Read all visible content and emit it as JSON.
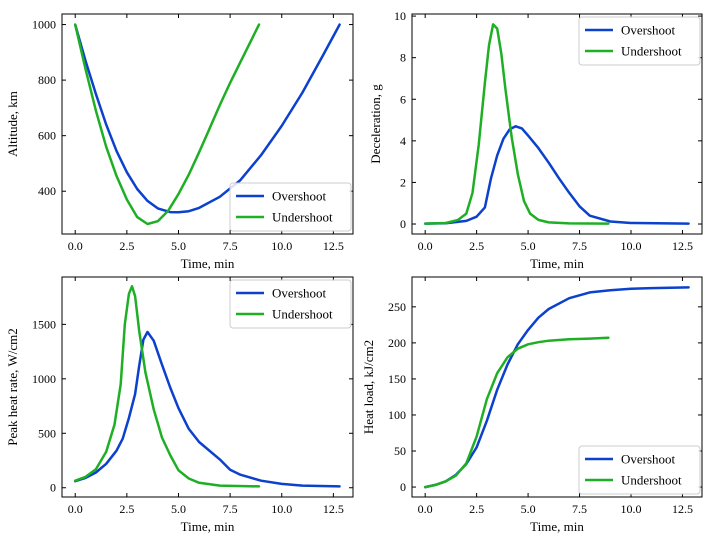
{
  "chart_data": [
    {
      "type": "line",
      "xlabel": "Time, min",
      "ylabel": "Altitude, km",
      "xlim": [
        -0.64,
        13.45
      ],
      "ylim": [
        246,
        1038
      ],
      "xticks": [
        0.0,
        2.5,
        5.0,
        7.5,
        10.0,
        12.5
      ],
      "xtick_labels": [
        "0.0",
        "2.5",
        "5.0",
        "7.5",
        "10.0",
        "12.5"
      ],
      "yticks": [
        400,
        600,
        800,
        1000
      ],
      "ytick_labels": [
        "400",
        "600",
        "800",
        "1000"
      ],
      "legend": "lower-right",
      "series": [
        {
          "name": "Overshoot",
          "color": "#0b41cd",
          "x": [
            0.0,
            0.5,
            1.0,
            1.5,
            2.0,
            2.5,
            3.0,
            3.5,
            4.0,
            4.6,
            5.0,
            5.5,
            6.0,
            7.0,
            8.0,
            9.0,
            10.0,
            11.0,
            12.0,
            12.8
          ],
          "y": [
            1000,
            870,
            750,
            640,
            545,
            468,
            408,
            365,
            338,
            325,
            324,
            328,
            340,
            380,
            440,
            530,
            635,
            755,
            890,
            1000
          ]
        },
        {
          "name": "Undershoot",
          "color": "#1faf24",
          "x": [
            0.0,
            0.5,
            1.0,
            1.5,
            2.0,
            2.5,
            3.0,
            3.5,
            4.0,
            4.5,
            5.0,
            5.5,
            6.0,
            6.5,
            7.0,
            7.5,
            8.0,
            8.5,
            8.9
          ],
          "y": [
            1000,
            840,
            690,
            560,
            455,
            370,
            307,
            282,
            292,
            330,
            390,
            460,
            540,
            625,
            710,
            790,
            865,
            940,
            1000
          ]
        }
      ]
    },
    {
      "type": "line",
      "xlabel": "Time, min",
      "ylabel": "Deceleration, g",
      "xlim": [
        -0.64,
        13.45
      ],
      "ylim": [
        -0.48,
        10.1
      ],
      "xticks": [
        0.0,
        2.5,
        5.0,
        7.5,
        10.0,
        12.5
      ],
      "xtick_labels": [
        "0.0",
        "2.5",
        "5.0",
        "7.5",
        "10.0",
        "12.5"
      ],
      "yticks": [
        0,
        2,
        4,
        6,
        8,
        10
      ],
      "ytick_labels": [
        "0",
        "2",
        "4",
        "6",
        "8",
        "10"
      ],
      "legend": "top-right",
      "series": [
        {
          "name": "Overshoot",
          "color": "#0b41cd",
          "x": [
            0.0,
            1.0,
            2.0,
            2.5,
            2.9,
            3.2,
            3.5,
            3.8,
            4.1,
            4.4,
            4.7,
            5.0,
            5.5,
            6.0,
            6.5,
            7.0,
            7.5,
            8.0,
            9.0,
            10.0,
            12.8
          ],
          "y": [
            0.02,
            0.04,
            0.15,
            0.35,
            0.8,
            2.2,
            3.3,
            4.1,
            4.55,
            4.7,
            4.6,
            4.25,
            3.65,
            2.95,
            2.2,
            1.5,
            0.85,
            0.4,
            0.12,
            0.05,
            0.02
          ]
        },
        {
          "name": "Undershoot",
          "color": "#1faf24",
          "x": [
            0.0,
            1.0,
            1.6,
            2.0,
            2.3,
            2.6,
            2.9,
            3.1,
            3.3,
            3.5,
            3.7,
            3.9,
            4.2,
            4.5,
            4.8,
            5.1,
            5.5,
            6.0,
            7.0,
            8.9
          ],
          "y": [
            0.02,
            0.05,
            0.2,
            0.5,
            1.5,
            3.8,
            6.8,
            8.6,
            9.6,
            9.4,
            8.2,
            6.5,
            4.2,
            2.4,
            1.1,
            0.5,
            0.2,
            0.08,
            0.03,
            0.02
          ]
        }
      ]
    },
    {
      "type": "line",
      "xlabel": "Time, min",
      "ylabel": "Peak heat rate, W/cm2",
      "xlim": [
        -0.64,
        13.45
      ],
      "ylim": [
        -85,
        1935
      ],
      "xticks": [
        0.0,
        2.5,
        5.0,
        7.5,
        10.0,
        12.5
      ],
      "xtick_labels": [
        "0.0",
        "2.5",
        "5.0",
        "7.5",
        "10.0",
        "12.5"
      ],
      "yticks": [
        0,
        500,
        1000,
        1500
      ],
      "ytick_labels": [
        "0",
        "500",
        "1000",
        "1500"
      ],
      "legend": "top-right",
      "series": [
        {
          "name": "Overshoot",
          "color": "#0b41cd",
          "x": [
            0.0,
            0.5,
            1.0,
            1.5,
            2.0,
            2.3,
            2.6,
            2.9,
            3.1,
            3.3,
            3.5,
            3.8,
            4.2,
            4.6,
            5.0,
            5.5,
            6.0,
            7.0,
            7.5,
            8.0,
            9.0,
            10.0,
            11.0,
            12.8
          ],
          "y": [
            60,
            90,
            140,
            220,
            340,
            450,
            640,
            860,
            1120,
            1360,
            1430,
            1350,
            1130,
            920,
            730,
            540,
            420,
            260,
            165,
            120,
            65,
            35,
            20,
            12
          ]
        },
        {
          "name": "Undershoot",
          "color": "#1faf24",
          "x": [
            0.0,
            0.5,
            1.0,
            1.5,
            1.9,
            2.2,
            2.4,
            2.6,
            2.75,
            2.9,
            3.1,
            3.4,
            3.8,
            4.2,
            4.6,
            5.0,
            5.5,
            6.0,
            7.0,
            8.9
          ],
          "y": [
            65,
            100,
            170,
            330,
            580,
            950,
            1500,
            1780,
            1850,
            1760,
            1440,
            1060,
            720,
            460,
            300,
            160,
            85,
            45,
            20,
            12
          ]
        }
      ]
    },
    {
      "type": "line",
      "xlabel": "Time, min",
      "ylabel": "Heat load, kJ/cm2",
      "xlim": [
        -0.64,
        13.45
      ],
      "ylim": [
        -13.8,
        291.4
      ],
      "xticks": [
        0.0,
        2.5,
        5.0,
        7.5,
        10.0,
        12.5
      ],
      "xtick_labels": [
        "0.0",
        "2.5",
        "5.0",
        "7.5",
        "10.0",
        "12.5"
      ],
      "yticks": [
        0,
        50,
        100,
        150,
        200,
        250
      ],
      "ytick_labels": [
        "0",
        "50",
        "100",
        "150",
        "200",
        "250"
      ],
      "legend": "lower-right",
      "series": [
        {
          "name": "Overshoot",
          "color": "#0b41cd",
          "x": [
            0.0,
            0.5,
            1.0,
            1.5,
            2.0,
            2.5,
            3.0,
            3.5,
            4.0,
            4.5,
            5.0,
            5.5,
            6.0,
            7.0,
            8.0,
            9.0,
            10.0,
            11.0,
            12.8
          ],
          "y": [
            0,
            3,
            8,
            17,
            32,
            55,
            92,
            135,
            170,
            198,
            218,
            235,
            247,
            262,
            270,
            273,
            275,
            276,
            277
          ]
        },
        {
          "name": "Undershoot",
          "color": "#1faf24",
          "x": [
            0.0,
            0.5,
            1.0,
            1.5,
            2.0,
            2.5,
            3.0,
            3.5,
            4.0,
            4.5,
            5.0,
            5.5,
            6.0,
            7.0,
            8.0,
            8.9
          ],
          "y": [
            0,
            3,
            8,
            16,
            33,
            70,
            122,
            158,
            180,
            192,
            198,
            201,
            203,
            205,
            206,
            207
          ]
        }
      ]
    }
  ]
}
